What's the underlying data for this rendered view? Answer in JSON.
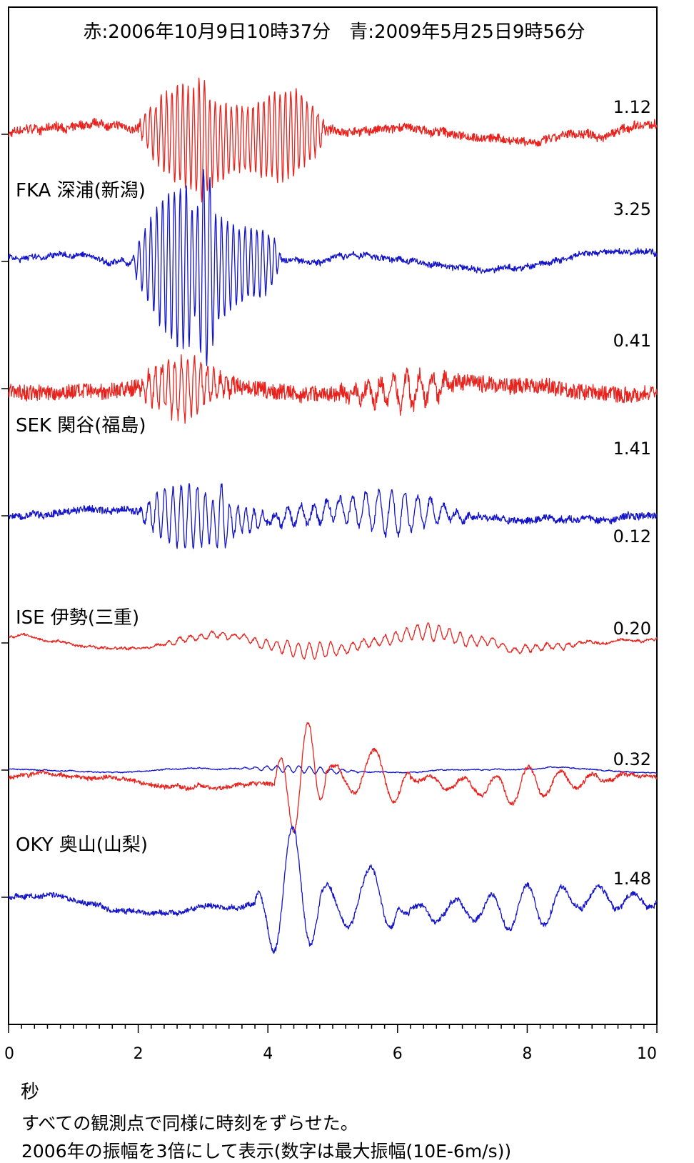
{
  "chart_data": {
    "type": "line",
    "title": "赤:2006年10月9日10時37分　青:2009年5月25日9時56分",
    "xlabel": "秒",
    "xlim": [
      0,
      10
    ],
    "x_ticks": [
      "0",
      "2",
      "4",
      "6",
      "8",
      "10"
    ],
    "grid": false,
    "colors": {
      "red": "#e8231e",
      "blue": "#1414c8"
    },
    "stations": [
      {
        "label": "FKA 深浦(新潟)",
        "traces": [
          {
            "color": "red",
            "max_amplitude": "1.12",
            "style": "noise-small",
            "events": [
              [
                2.0,
                4.9,
                0.9,
                12
              ],
              [
                2.9,
                3.1,
                0.4,
                10
              ]
            ]
          },
          {
            "color": "blue",
            "max_amplitude": "3.25",
            "style": "smooth",
            "events": [
              [
                1.9,
                4.2,
                1.0,
                11
              ],
              [
                2.8,
                3.2,
                0.8,
                9
              ]
            ]
          }
        ]
      },
      {
        "label": "SEK 関谷(福島)",
        "traces": [
          {
            "color": "red",
            "max_amplitude": "0.41",
            "style": "noise-large",
            "events": [
              [
                2.0,
                3.5,
                0.6,
                10
              ],
              [
                5.0,
                7.0,
                0.35,
                5
              ]
            ]
          },
          {
            "color": "blue",
            "max_amplitude": "1.41",
            "style": "noise-small",
            "events": [
              [
                2.0,
                4.0,
                0.6,
                8
              ],
              [
                3.1,
                3.4,
                0.6,
                6
              ],
              [
                4.0,
                7.2,
                0.4,
                5
              ]
            ]
          }
        ]
      },
      {
        "label": "ISE 伊勢(三重)",
        "traces": [
          {
            "color": "red",
            "max_amplitude": "0.12",
            "style": "drift",
            "events": [
              [
                2.3,
                9.0,
                0.25,
                6
              ]
            ]
          },
          {
            "color": "blue",
            "max_amplitude": "0.20",
            "style": "quiet",
            "events": [
              [
                3.5,
                5.5,
                0.15,
                6
              ]
            ]
          }
        ]
      },
      {
        "label": "OKY 奥山(山梨)",
        "traces": [
          {
            "color": "red",
            "max_amplitude": "0.32",
            "style": "smooth",
            "events": [
              [
                4.1,
                4.9,
                0.9,
                2.2
              ],
              [
                4.9,
                6.2,
                0.6,
                1.6
              ],
              [
                6.2,
                9.5,
                0.25,
                2
              ]
            ]
          },
          {
            "color": "blue",
            "max_amplitude": "1.48",
            "style": "smooth",
            "events": [
              [
                3.8,
                4.8,
                1.0,
                1.6
              ],
              [
                4.8,
                6.0,
                0.75,
                1.4
              ],
              [
                6.0,
                10.0,
                0.28,
                1.8
              ]
            ]
          }
        ]
      }
    ]
  },
  "notes": [
    "すべての観測点で同様に時刻をずらせた。",
    "2006年の振幅を3倍にして表示(数字は最大振幅(10E-6m/s))"
  ]
}
